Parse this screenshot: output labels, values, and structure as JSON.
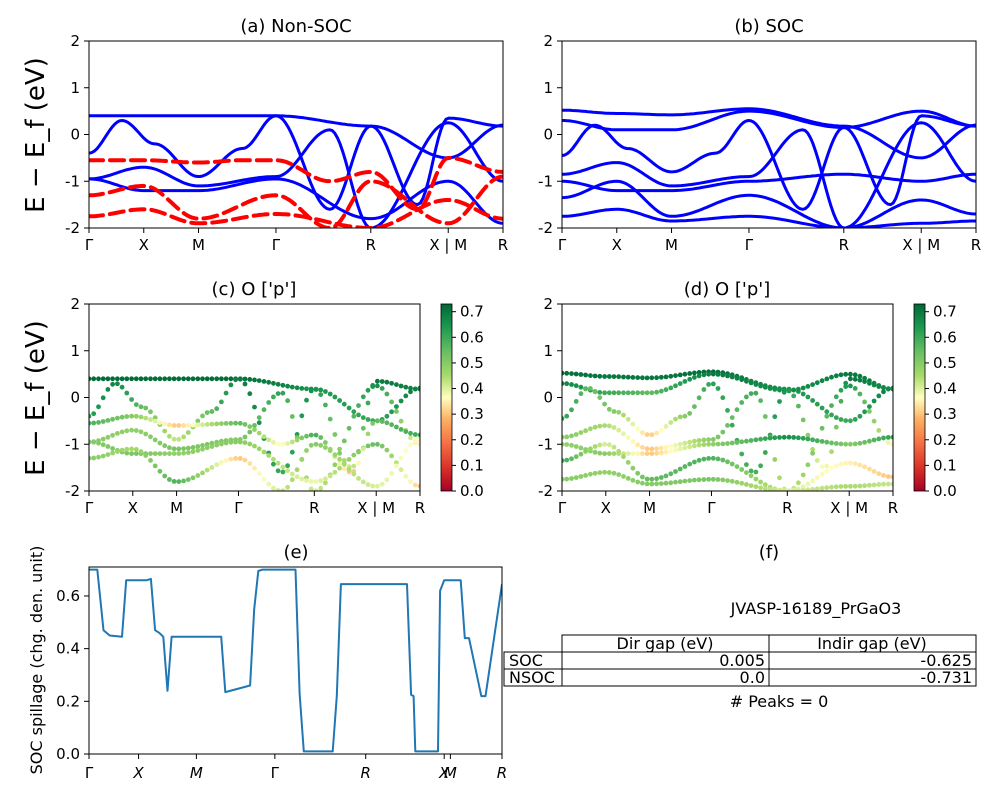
{
  "figure": {
    "ylabel_band": "E − E_f (eV)",
    "ylabel_spillage": "SOC spillage (chg. den. unit)"
  },
  "chart_data": [
    {
      "id": "a",
      "type": "line",
      "title": "(a) Non-SOC",
      "ylim": [
        -2,
        2
      ],
      "yticks": [
        -2,
        -1,
        0,
        1,
        2
      ],
      "xticks": [
        "Γ",
        "X",
        "M",
        "Γ",
        "R",
        "X | M",
        "R"
      ],
      "tick_positions": [
        0,
        0.5,
        1.0,
        1.707,
        2.573,
        3.28,
        3.78
      ],
      "series": [
        {
          "color": "#0000ff",
          "dashed": false,
          "x": [
            0,
            0.5,
            1.0,
            1.707,
            2.573,
            3.28,
            3.78
          ],
          "y": [
            0.4,
            0.4,
            0.4,
            0.4,
            0.18,
            -0.5,
            0.2
          ]
        },
        {
          "color": "#0000ff",
          "dashed": false,
          "x": [
            0,
            0.3,
            0.6,
            1.0,
            1.4,
            1.707,
            2.2,
            2.573,
            3.0,
            3.28,
            3.78
          ],
          "y": [
            -0.4,
            0.3,
            -0.2,
            -0.9,
            -0.3,
            0.4,
            -1.6,
            0.18,
            -1.5,
            0.35,
            0.18
          ]
        },
        {
          "color": "#0000ff",
          "dashed": false,
          "x": [
            0,
            0.5,
            1.0,
            1.707,
            2.2,
            2.573,
            3.28,
            3.78
          ],
          "y": [
            -0.95,
            -0.7,
            -1.1,
            -0.9,
            0.1,
            -2.0,
            0.25,
            -1.0
          ]
        },
        {
          "color": "#0000ff",
          "dashed": false,
          "x": [
            0,
            0.5,
            1.0,
            1.707,
            2.573,
            3.28,
            3.78
          ],
          "y": [
            -0.95,
            -1.2,
            -1.2,
            -0.95,
            -1.8,
            -1.0,
            -1.9
          ]
        },
        {
          "color": "#ff0000",
          "dashed": true,
          "x": [
            0,
            0.5,
            1.0,
            1.4,
            1.707,
            2.2,
            2.573,
            3.0,
            3.28,
            3.78
          ],
          "y": [
            -0.55,
            -0.55,
            -0.6,
            -0.55,
            -0.55,
            -1.0,
            -0.8,
            -1.6,
            -0.5,
            -0.8
          ]
        },
        {
          "color": "#ff0000",
          "dashed": true,
          "x": [
            0,
            0.5,
            1.0,
            1.707,
            2.2,
            2.573,
            3.28,
            3.78
          ],
          "y": [
            -1.3,
            -1.1,
            -1.8,
            -1.3,
            -2.0,
            -1.0,
            -1.9,
            -0.9
          ]
        },
        {
          "color": "#ff0000",
          "dashed": true,
          "x": [
            0,
            0.5,
            1.0,
            1.707,
            2.573,
            3.28,
            3.78
          ],
          "y": [
            -1.75,
            -1.6,
            -1.9,
            -1.7,
            -2.0,
            -1.4,
            -1.8
          ]
        }
      ]
    },
    {
      "id": "b",
      "type": "line",
      "title": "(b) SOC",
      "ylim": [
        -2,
        2
      ],
      "yticks": [
        -2,
        -1,
        0,
        1,
        2
      ],
      "xticks": [
        "Γ",
        "X",
        "M",
        "Γ",
        "R",
        "X | M",
        "R"
      ],
      "tick_positions": [
        0,
        0.5,
        1.0,
        1.707,
        2.573,
        3.28,
        3.78
      ],
      "series": [
        {
          "color": "#0000ff",
          "dashed": false,
          "x": [
            0,
            0.5,
            1.0,
            1.707,
            2.573,
            3.28,
            3.78
          ],
          "y": [
            0.52,
            0.45,
            0.42,
            0.55,
            0.18,
            -0.5,
            0.2
          ]
        },
        {
          "color": "#0000ff",
          "dashed": false,
          "x": [
            0,
            0.5,
            1.0,
            1.707,
            2.573,
            3.28,
            3.78
          ],
          "y": [
            0.3,
            0.1,
            0.1,
            0.5,
            0.15,
            0.5,
            0.18
          ]
        },
        {
          "color": "#0000ff",
          "dashed": false,
          "x": [
            0,
            0.3,
            0.6,
            1.0,
            1.4,
            1.707,
            2.2,
            2.573,
            3.0,
            3.28,
            3.78
          ],
          "y": [
            -0.45,
            0.2,
            -0.3,
            -0.8,
            -0.4,
            0.3,
            -1.6,
            0.15,
            -1.5,
            0.4,
            0.18
          ]
        },
        {
          "color": "#0000ff",
          "dashed": false,
          "x": [
            0,
            0.5,
            1.0,
            1.707,
            2.2,
            2.573,
            3.28,
            3.78
          ],
          "y": [
            -0.85,
            -0.6,
            -1.1,
            -0.9,
            0.1,
            -2.0,
            0.25,
            -1.0
          ]
        },
        {
          "color": "#0000ff",
          "dashed": false,
          "x": [
            0,
            0.5,
            1.0,
            1.707,
            2.573,
            3.28,
            3.78
          ],
          "y": [
            -1.0,
            -1.2,
            -1.2,
            -1.0,
            -0.85,
            -1.0,
            -0.85
          ]
        },
        {
          "color": "#0000ff",
          "dashed": false,
          "x": [
            0,
            0.5,
            1.0,
            1.707,
            2.573,
            3.28,
            3.78
          ],
          "y": [
            -1.35,
            -1.0,
            -1.75,
            -1.3,
            -2.0,
            -1.4,
            -1.7
          ]
        },
        {
          "color": "#0000ff",
          "dashed": false,
          "x": [
            0,
            0.5,
            1.0,
            1.707,
            2.573,
            3.28,
            3.78
          ],
          "y": [
            -1.75,
            -1.6,
            -1.85,
            -1.75,
            -2.0,
            -1.9,
            -1.85
          ]
        }
      ]
    },
    {
      "id": "c",
      "type": "scatter",
      "title": "(c)  O ['p']",
      "ylim": [
        -2,
        2
      ],
      "yticks": [
        -2,
        -1,
        0,
        1,
        2
      ],
      "xticks": [
        "Γ",
        "X",
        "M",
        "Γ",
        "R",
        "X | M",
        "R"
      ],
      "tick_positions": [
        0,
        0.5,
        1.0,
        1.707,
        2.573,
        3.28,
        3.78
      ],
      "colorbar": {
        "ticks": [
          0.0,
          0.1,
          0.2,
          0.3,
          0.4,
          0.5,
          0.6,
          0.7
        ],
        "max": 0.73
      },
      "bands": [
        {
          "x": [
            0,
            0.5,
            1.0,
            1.707,
            2.573,
            3.28,
            3.78
          ],
          "y": [
            0.4,
            0.4,
            0.4,
            0.4,
            0.18,
            -0.5,
            0.2
          ],
          "w": [
            0.72,
            0.72,
            0.72,
            0.72,
            0.65,
            0.6,
            0.7
          ]
        },
        {
          "x": [
            0,
            0.3,
            0.6,
            1.0,
            1.4,
            1.707,
            2.2,
            2.573,
            3.0,
            3.28,
            3.78
          ],
          "y": [
            -0.4,
            0.3,
            -0.2,
            -0.9,
            -0.3,
            0.4,
            -1.6,
            0.18,
            -1.5,
            0.35,
            0.18
          ],
          "w": [
            0.62,
            0.68,
            0.55,
            0.42,
            0.55,
            0.7,
            0.6,
            0.66,
            0.4,
            0.7,
            0.68
          ]
        },
        {
          "x": [
            0,
            0.5,
            1.0,
            1.707,
            2.2,
            2.573,
            3.28,
            3.78
          ],
          "y": [
            -0.95,
            -0.7,
            -1.1,
            -0.9,
            0.1,
            -2.0,
            0.25,
            -1.0
          ],
          "w": [
            0.5,
            0.48,
            0.52,
            0.5,
            0.62,
            0.4,
            0.66,
            0.35
          ]
        },
        {
          "x": [
            0,
            0.5,
            1.0,
            1.707,
            2.573,
            3.28,
            3.78
          ],
          "y": [
            -0.95,
            -1.2,
            -1.2,
            -0.95,
            -1.8,
            -1.0,
            -1.9
          ],
          "w": [
            0.5,
            0.52,
            0.48,
            0.5,
            0.38,
            0.55,
            0.3
          ]
        },
        {
          "x": [
            0,
            0.5,
            1.0,
            1.707,
            2.2,
            2.573,
            3.0,
            3.28,
            3.78
          ],
          "y": [
            -0.55,
            -0.4,
            -0.6,
            -0.55,
            -1.0,
            -0.8,
            -1.6,
            -0.5,
            -0.8
          ],
          "w": [
            0.58,
            0.5,
            0.3,
            0.56,
            0.35,
            0.6,
            0.28,
            0.55,
            0.6
          ]
        },
        {
          "x": [
            0,
            0.5,
            1.0,
            1.707,
            2.2,
            2.573,
            3.28,
            3.78
          ],
          "y": [
            -1.3,
            -1.1,
            -1.8,
            -1.3,
            -2.0,
            -1.0,
            -1.9,
            -0.9
          ],
          "w": [
            0.5,
            0.45,
            0.58,
            0.3,
            0.42,
            0.5,
            0.4,
            0.35
          ]
        }
      ]
    },
    {
      "id": "d",
      "type": "scatter",
      "title": "(d) O ['p']",
      "ylim": [
        -2,
        2
      ],
      "yticks": [
        -2,
        -1,
        0,
        1,
        2
      ],
      "xticks": [
        "Γ",
        "X",
        "M",
        "Γ",
        "R",
        "X | M",
        "R"
      ],
      "tick_positions": [
        0,
        0.5,
        1.0,
        1.707,
        2.573,
        3.28,
        3.78
      ],
      "colorbar": {
        "ticks": [
          0.0,
          0.1,
          0.2,
          0.3,
          0.4,
          0.5,
          0.6,
          0.7
        ],
        "max": 0.73
      },
      "bands": [
        {
          "x": [
            0,
            0.5,
            1.0,
            1.707,
            2.573,
            3.28,
            3.78
          ],
          "y": [
            0.52,
            0.45,
            0.42,
            0.55,
            0.18,
            -0.5,
            0.2
          ],
          "w": [
            0.72,
            0.7,
            0.7,
            0.72,
            0.65,
            0.6,
            0.7
          ]
        },
        {
          "x": [
            0,
            0.5,
            1.0,
            1.707,
            2.573,
            3.28,
            3.78
          ],
          "y": [
            0.3,
            0.1,
            0.1,
            0.5,
            0.15,
            0.5,
            0.18
          ],
          "w": [
            0.68,
            0.6,
            0.55,
            0.7,
            0.65,
            0.7,
            0.68
          ]
        },
        {
          "x": [
            0,
            0.3,
            0.6,
            1.0,
            1.4,
            1.707,
            2.2,
            2.573,
            3.0,
            3.28,
            3.78
          ],
          "y": [
            -0.45,
            0.2,
            -0.3,
            -0.8,
            -0.4,
            0.3,
            -1.6,
            0.15,
            -1.5,
            0.4,
            0.18
          ],
          "w": [
            0.62,
            0.55,
            0.5,
            0.3,
            0.5,
            0.62,
            0.58,
            0.65,
            0.35,
            0.7,
            0.66
          ]
        },
        {
          "x": [
            0,
            0.5,
            1.0,
            1.707,
            2.2,
            2.573,
            3.28,
            3.78
          ],
          "y": [
            -0.85,
            -0.6,
            -1.1,
            -0.9,
            0.1,
            -2.0,
            0.25,
            -1.0
          ],
          "w": [
            0.5,
            0.45,
            0.3,
            0.5,
            0.6,
            0.4,
            0.65,
            0.35
          ]
        },
        {
          "x": [
            0,
            0.5,
            1.0,
            1.707,
            2.573,
            3.28,
            3.78
          ],
          "y": [
            -1.0,
            -1.2,
            -1.2,
            -1.0,
            -0.85,
            -1.0,
            -0.85
          ],
          "w": [
            0.48,
            0.5,
            0.3,
            0.48,
            0.66,
            0.5,
            0.62
          ]
        },
        {
          "x": [
            0,
            0.5,
            1.0,
            1.707,
            2.573,
            3.28,
            3.78
          ],
          "y": [
            -1.35,
            -1.0,
            -1.75,
            -1.3,
            -2.0,
            -1.4,
            -1.7
          ],
          "w": [
            0.6,
            0.4,
            0.55,
            0.58,
            0.4,
            0.35,
            0.3
          ]
        },
        {
          "x": [
            0,
            0.5,
            1.0,
            1.707,
            2.573,
            3.28,
            3.78
          ],
          "y": [
            -1.75,
            -1.6,
            -1.85,
            -1.75,
            -2.0,
            -1.9,
            -1.85
          ],
          "w": [
            0.5,
            0.48,
            0.5,
            0.52,
            0.4,
            0.45,
            0.42
          ]
        }
      ]
    },
    {
      "id": "e",
      "type": "line",
      "title": "(e)",
      "ylabel": "SOC spillage (chg. den. unit)",
      "ylim": [
        0,
        0.71
      ],
      "yticks": [
        0.0,
        0.2,
        0.4,
        0.6
      ],
      "xlim": [
        0,
        100
      ],
      "xticks": [
        "Γ",
        "X",
        "M",
        "Γ",
        "R",
        "X",
        "M",
        "R"
      ],
      "tick_positions": [
        0,
        12,
        26,
        45,
        67,
        86,
        87.5,
        100
      ],
      "color": "#1f77b4",
      "x": [
        0,
        2,
        3.5,
        5,
        8,
        9,
        10,
        14,
        15,
        16,
        17,
        18,
        19,
        20,
        32,
        33,
        39,
        40,
        41,
        42,
        50,
        51,
        52,
        59,
        60,
        61,
        67,
        77,
        78,
        78.6,
        79,
        84.5,
        85,
        86,
        90,
        91,
        92,
        95,
        96,
        100
      ],
      "y": [
        0.7,
        0.7,
        0.47,
        0.45,
        0.445,
        0.66,
        0.66,
        0.66,
        0.665,
        0.47,
        0.46,
        0.445,
        0.24,
        0.445,
        0.445,
        0.235,
        0.26,
        0.55,
        0.695,
        0.7,
        0.7,
        0.23,
        0.01,
        0.01,
        0.22,
        0.645,
        0.645,
        0.645,
        0.225,
        0.22,
        0.01,
        0.01,
        0.62,
        0.66,
        0.66,
        0.44,
        0.44,
        0.22,
        0.22,
        0.645
      ]
    }
  ],
  "panel_f": {
    "title": "(f)",
    "material": "JVASP-16189_PrGaO3",
    "table": {
      "columns": [
        "Dir gap (eV)",
        "Indir gap (eV)"
      ],
      "rows": [
        {
          "label": "SOC",
          "dir": "0.005",
          "indir": "-0.625"
        },
        {
          "label": "NSOC",
          "dir": "0.0",
          "indir": "-0.731"
        }
      ]
    },
    "peaks": "# Peaks = 0"
  }
}
